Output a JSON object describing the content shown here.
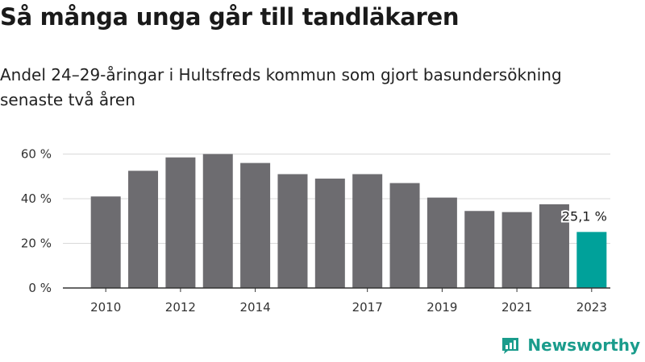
{
  "title": "Så många unga går till tandläkaren",
  "subtitle": "Andel 24–29-åringar i Hultsfreds kommun som gjort basundersökning senaste två åren",
  "brand": {
    "name": "Newsworthy",
    "icon": "newsworthy-logo-icon",
    "color": "#1a9c8c"
  },
  "chart_data": {
    "type": "bar",
    "title": "Så många unga går till tandläkaren",
    "categories": [
      2010,
      2011,
      2012,
      2013,
      2014,
      2015,
      2016,
      2017,
      2018,
      2019,
      2020,
      2021,
      2022,
      2023
    ],
    "values": [
      41,
      52.5,
      58.5,
      60,
      56,
      51,
      49,
      51,
      47,
      40.5,
      34.5,
      34,
      37.5,
      25.1
    ],
    "xtick_labels": [
      "2010",
      "2012",
      "2014",
      "2017",
      "2019",
      "2021",
      "2023"
    ],
    "yticks": [
      0,
      20,
      40,
      60
    ],
    "ytick_labels": [
      "0 %",
      "20 %",
      "40 %",
      "60 %"
    ],
    "ylim": [
      0,
      62
    ],
    "xlabel": "",
    "ylabel": "",
    "highlight": {
      "category": 2023,
      "label": "25,1 %"
    },
    "grid": "horizontal",
    "colors": {
      "bar": "#6d6c70",
      "highlight": "#00a19a",
      "grid": "#d9d9d9",
      "axis": "#333333"
    }
  }
}
